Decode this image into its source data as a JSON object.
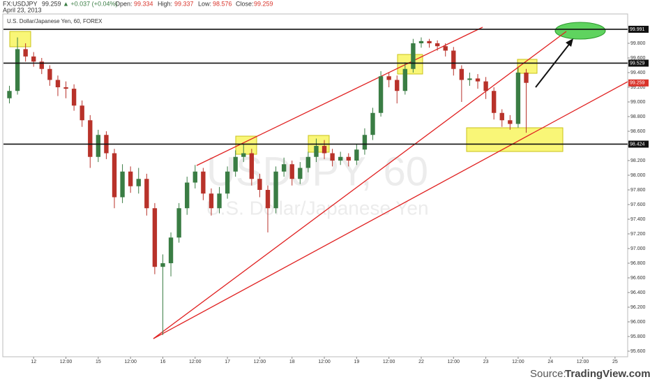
{
  "header": {
    "symbol": "FX:USDJPY",
    "price": "99.259",
    "change": "▲ +0.037 (+0.04%)",
    "open_label": "Open:",
    "open": "99.334",
    "high_label": "High:",
    "high": "99.337",
    "low_label": "Low:",
    "low": "98.576",
    "close_label": "Close:",
    "close": "99.259",
    "date": "April 23, 2013"
  },
  "footer": {
    "source_label": "Source:",
    "source": "TradingView.com"
  },
  "chart_data": {
    "type": "candlestick",
    "title": "U.S. Dollar/Japanese Yen, 60, FOREX",
    "watermark": "USDJPY, 60",
    "watermark_subtitle": "U.S. Dollar/Japanese Yen",
    "up_color": "#3a7d44",
    "down_color": "#b8322a",
    "xlim": [
      -11.2,
      220.7
    ],
    "xticks": [
      {
        "value": 0,
        "label": "12"
      },
      {
        "value": 12,
        "label": "12:00"
      },
      {
        "value": 24,
        "label": "15"
      },
      {
        "value": 36,
        "label": "12:00"
      },
      {
        "value": 48,
        "label": "16"
      },
      {
        "value": 60,
        "label": "12:00"
      },
      {
        "value": 72,
        "label": "17"
      },
      {
        "value": 84,
        "label": "12:00"
      },
      {
        "value": 96,
        "label": "18"
      },
      {
        "value": 108,
        "label": "12:00"
      },
      {
        "value": 120,
        "label": "19"
      },
      {
        "value": 132,
        "label": "12:00"
      },
      {
        "value": 144,
        "label": "22"
      },
      {
        "value": 156,
        "label": "12:00"
      },
      {
        "value": 168,
        "label": "23"
      },
      {
        "value": 180,
        "label": "12:00"
      },
      {
        "value": 192,
        "label": "24"
      },
      {
        "value": 204,
        "label": "12:00"
      },
      {
        "value": 216,
        "label": "25"
      }
    ],
    "ylim": [
      95.514,
      100.219
    ],
    "yticks": [
      {
        "value": 95.6,
        "label": "95.600"
      },
      {
        "value": 95.8,
        "label": "95.800"
      },
      {
        "value": 96.0,
        "label": "96.000"
      },
      {
        "value": 96.2,
        "label": "96.200"
      },
      {
        "value": 96.4,
        "label": "96.400"
      },
      {
        "value": 96.6,
        "label": "96.600"
      },
      {
        "value": 96.8,
        "label": "96.800"
      },
      {
        "value": 97.0,
        "label": "97.000"
      },
      {
        "value": 97.2,
        "label": "97.200"
      },
      {
        "value": 97.4,
        "label": "97.400"
      },
      {
        "value": 97.6,
        "label": "97.600"
      },
      {
        "value": 97.8,
        "label": "97.800"
      },
      {
        "value": 98.0,
        "label": "98.000"
      },
      {
        "value": 98.2,
        "label": "98.200"
      },
      {
        "value": 98.4,
        "label": "98.400"
      },
      {
        "value": 98.6,
        "label": "98.600"
      },
      {
        "value": 98.8,
        "label": "98.800"
      },
      {
        "value": 99.0,
        "label": "99.000"
      },
      {
        "value": 99.2,
        "label": "99.200"
      },
      {
        "value": 99.4,
        "label": "99.400"
      },
      {
        "value": 99.6,
        "label": "99.600"
      },
      {
        "value": 99.8,
        "label": "99.800"
      }
    ],
    "levels": [
      {
        "value": 99.991,
        "label": "99.991"
      },
      {
        "value": 99.529,
        "label": "99.529"
      },
      {
        "value": 98.424,
        "label": "98.424"
      }
    ],
    "last_price": {
      "value": 99.259,
      "label": "99.259",
      "color": "#d9342b"
    },
    "x": [
      -9,
      -6,
      -3,
      0,
      3,
      6,
      9,
      12,
      15,
      18,
      21,
      24,
      27,
      30,
      33,
      36,
      39,
      42,
      45,
      48,
      51,
      54,
      57,
      60,
      63,
      66,
      69,
      72,
      75,
      78,
      81,
      84,
      87,
      90,
      93,
      96,
      99,
      102,
      105,
      108,
      111,
      114,
      117,
      120,
      123,
      126,
      129,
      132,
      135,
      138,
      141,
      144,
      147,
      150,
      153,
      156,
      159,
      162,
      165,
      168,
      171,
      174,
      177,
      180,
      183
    ],
    "open": [
      99.05,
      99.15,
      99.72,
      99.62,
      99.55,
      99.45,
      99.3,
      99.2,
      99.18,
      98.95,
      98.75,
      98.25,
      98.55,
      98.3,
      97.7,
      98.05,
      97.85,
      97.95,
      97.55,
      96.75,
      96.8,
      97.15,
      97.55,
      97.9,
      98.05,
      97.75,
      97.55,
      97.75,
      98.05,
      98.25,
      98.3,
      97.95,
      97.8,
      97.55,
      98.05,
      98.15,
      97.95,
      98.1,
      98.25,
      98.4,
      98.3,
      98.2,
      98.25,
      98.2,
      98.35,
      98.55,
      98.85,
      99.35,
      99.3,
      99.15,
      99.45,
      99.8,
      99.83,
      99.8,
      99.76,
      99.7,
      99.45,
      99.3,
      99.32,
      99.28,
      99.15,
      98.85,
      98.75,
      98.7,
      99.4
    ],
    "high": [
      99.22,
      99.88,
      99.8,
      99.68,
      99.6,
      99.5,
      99.36,
      99.28,
      99.24,
      99.02,
      98.82,
      98.62,
      98.6,
      98.36,
      98.15,
      98.12,
      98.1,
      98.02,
      97.62,
      96.92,
      97.22,
      97.62,
      97.98,
      98.14,
      98.1,
      97.82,
      97.84,
      98.12,
      98.34,
      98.42,
      98.36,
      98.02,
      97.86,
      98.12,
      98.24,
      98.2,
      98.18,
      98.32,
      98.5,
      98.48,
      98.36,
      98.32,
      98.3,
      98.42,
      98.64,
      98.92,
      99.42,
      99.4,
      99.36,
      99.54,
      99.86,
      99.88,
      99.86,
      99.84,
      99.8,
      99.75,
      99.5,
      99.4,
      99.38,
      99.34,
      99.2,
      98.9,
      98.82,
      99.47,
      99.45
    ],
    "low": [
      98.98,
      99.1,
      99.55,
      99.48,
      99.38,
      99.22,
      99.08,
      99.05,
      98.88,
      98.66,
      98.1,
      98.18,
      98.22,
      97.55,
      97.62,
      97.76,
      97.75,
      97.45,
      96.65,
      95.82,
      96.62,
      97.08,
      97.46,
      97.82,
      97.66,
      97.45,
      97.48,
      97.68,
      97.98,
      98.18,
      97.86,
      97.7,
      97.22,
      97.48,
      97.98,
      97.86,
      97.88,
      98.04,
      98.18,
      98.22,
      98.12,
      98.14,
      98.12,
      98.14,
      98.28,
      98.48,
      98.8,
      99.2,
      98.98,
      99.1,
      99.4,
      99.74,
      99.74,
      99.7,
      99.62,
      99.36,
      99.0,
      99.22,
      99.18,
      99.04,
      98.76,
      98.66,
      98.62,
      98.65,
      98.58
    ],
    "close": [
      99.15,
      99.72,
      99.62,
      99.55,
      99.45,
      99.3,
      99.2,
      99.18,
      98.95,
      98.75,
      98.25,
      98.55,
      98.3,
      97.7,
      98.05,
      97.85,
      97.95,
      97.55,
      96.75,
      96.8,
      97.15,
      97.55,
      97.9,
      98.05,
      97.75,
      97.55,
      97.75,
      98.05,
      98.25,
      98.3,
      97.95,
      97.8,
      97.55,
      98.05,
      98.15,
      97.95,
      98.1,
      98.25,
      98.4,
      98.3,
      98.2,
      98.25,
      98.2,
      98.35,
      98.55,
      98.85,
      99.35,
      99.3,
      99.15,
      99.45,
      99.8,
      99.83,
      99.8,
      99.76,
      99.7,
      99.45,
      99.3,
      99.32,
      99.28,
      99.15,
      98.85,
      98.75,
      98.7,
      99.4,
      99.26
    ]
  }
}
